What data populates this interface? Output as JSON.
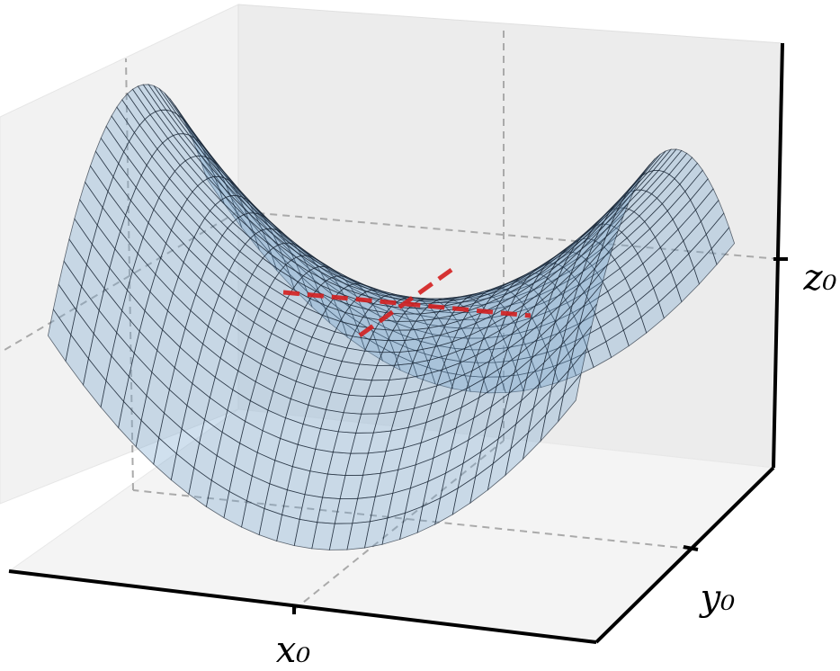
{
  "axes": {
    "x_label": "x₀",
    "y_label": "y₀",
    "z_label": "z₀"
  }
}
